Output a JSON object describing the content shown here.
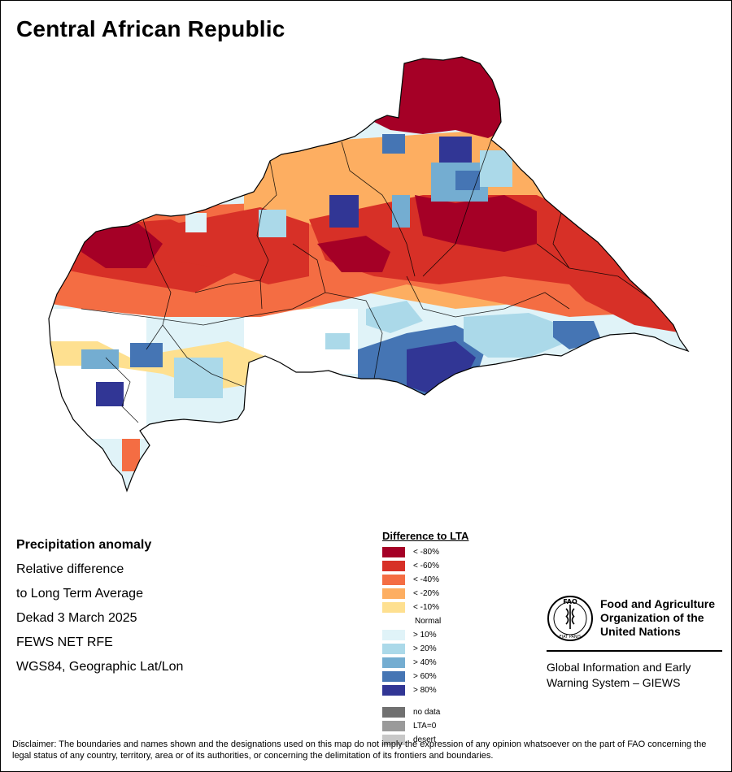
{
  "title": "Central African Republic",
  "info": {
    "heading": "Precipitation anomaly",
    "line1": "Relative difference",
    "line2": "to Long Term Average",
    "period": "Dekad 3 March 2025",
    "source": "FEWS NET RFE",
    "projection": "WGS84, Geographic Lat/Lon"
  },
  "legend": {
    "title": "Difference to LTA",
    "items": [
      {
        "label": "< -80%",
        "color": "#a50026"
      },
      {
        "label": "< -60%",
        "color": "#d73027"
      },
      {
        "label": "< -40%",
        "color": "#f46d43"
      },
      {
        "label": "< -20%",
        "color": "#fdae61"
      },
      {
        "label": "< -10%",
        "color": "#fee090"
      },
      {
        "label": "Normal",
        "color": "#ffffff"
      },
      {
        "label": "> 10%",
        "color": "#e0f3f8"
      },
      {
        "label": "> 20%",
        "color": "#abd9e9"
      },
      {
        "label": "> 40%",
        "color": "#74add1"
      },
      {
        "label": "> 60%",
        "color": "#4575b4"
      },
      {
        "label": "> 80%",
        "color": "#313695"
      }
    ],
    "extra": [
      {
        "label": "no data",
        "color": "#707070"
      },
      {
        "label": "LTA=0",
        "color": "#9a9a9a"
      },
      {
        "label": "desert",
        "color": "#c8c8c8"
      }
    ]
  },
  "logo": {
    "org_line1": "Food and Agriculture",
    "org_line2": "Organization of the",
    "org_line3": "United Nations",
    "system_line1": "Global Information and Early",
    "system_line2": "Warning System – GIEWS",
    "fao_text": "FAO",
    "fiat_text": "FIAT PANIS"
  },
  "disclaimer": "Disclaimer: The boundaries and names shown and the designations used on this map do not imply the expression of any opinion whatsoever on the part of FAO concerning the legal status of any country, territory, area or of its authorities, or concerning the delimitation of its frontiers and boundaries."
}
